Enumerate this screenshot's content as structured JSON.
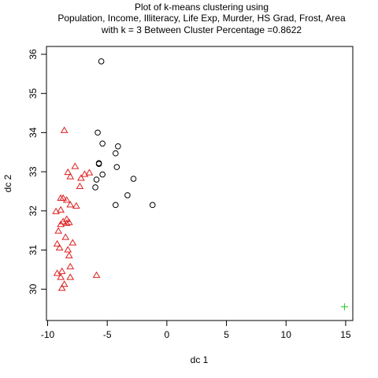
{
  "chart_data": {
    "type": "scatter",
    "title": [
      "Plot of k-means clustering using",
      "Population, Income, Illiteracy, Life Exp, Murder, HS Grad, Frost, Area",
      "with  k = 3 Between Cluster Percentage =0.8622"
    ],
    "xlabel": "dc 1",
    "ylabel": "dc 2",
    "xlim": [
      -10.1,
      15.6
    ],
    "ylim": [
      29.2,
      36.2
    ],
    "xticks": [
      -10,
      -5,
      0,
      5,
      10,
      15
    ],
    "yticks": [
      30,
      31,
      32,
      33,
      34,
      35,
      36
    ],
    "grid": false,
    "series": [
      {
        "marker": "circle",
        "color": "#000000",
        "points": [
          [
            -5.5,
            35.82
          ],
          [
            -5.8,
            34.0
          ],
          [
            -5.4,
            33.72
          ],
          [
            -4.1,
            33.65
          ],
          [
            -4.3,
            33.47
          ],
          [
            -5.7,
            33.22
          ],
          [
            -5.7,
            33.2
          ],
          [
            -4.2,
            33.12
          ],
          [
            -5.4,
            32.93
          ],
          [
            -2.8,
            32.82
          ],
          [
            -5.9,
            32.8
          ],
          [
            -6.0,
            32.6
          ],
          [
            -3.3,
            32.4
          ],
          [
            -4.3,
            32.15
          ],
          [
            -1.2,
            32.15
          ]
        ]
      },
      {
        "marker": "triangle",
        "color": "#df1e1e",
        "points": [
          [
            -8.6,
            34.05
          ],
          [
            -7.7,
            33.13
          ],
          [
            -8.3,
            32.98
          ],
          [
            -6.5,
            32.97
          ],
          [
            -6.9,
            32.93
          ],
          [
            -7.2,
            32.83
          ],
          [
            -8.1,
            32.87
          ],
          [
            -7.3,
            32.62
          ],
          [
            -8.7,
            32.32
          ],
          [
            -8.9,
            32.32
          ],
          [
            -8.4,
            32.27
          ],
          [
            -8.1,
            32.15
          ],
          [
            -7.6,
            32.12
          ],
          [
            -9.3,
            31.98
          ],
          [
            -8.9,
            32.02
          ],
          [
            -8.4,
            31.78
          ],
          [
            -8.7,
            31.72
          ],
          [
            -8.2,
            31.7
          ],
          [
            -8.9,
            31.65
          ],
          [
            -8.4,
            31.68
          ],
          [
            -9.1,
            31.48
          ],
          [
            -8.5,
            31.32
          ],
          [
            -9.2,
            31.15
          ],
          [
            -9.0,
            31.05
          ],
          [
            -7.9,
            31.18
          ],
          [
            -8.3,
            31.0
          ],
          [
            -8.2,
            30.85
          ],
          [
            -8.1,
            30.57
          ],
          [
            -8.8,
            30.45
          ],
          [
            -9.2,
            30.4
          ],
          [
            -8.1,
            30.3
          ],
          [
            -8.9,
            30.3
          ],
          [
            -5.9,
            30.35
          ],
          [
            -8.6,
            30.12
          ],
          [
            -8.8,
            30.02
          ]
        ]
      },
      {
        "marker": "plus",
        "color": "#22cc22",
        "points": [
          [
            14.9,
            29.55
          ]
        ]
      }
    ]
  }
}
